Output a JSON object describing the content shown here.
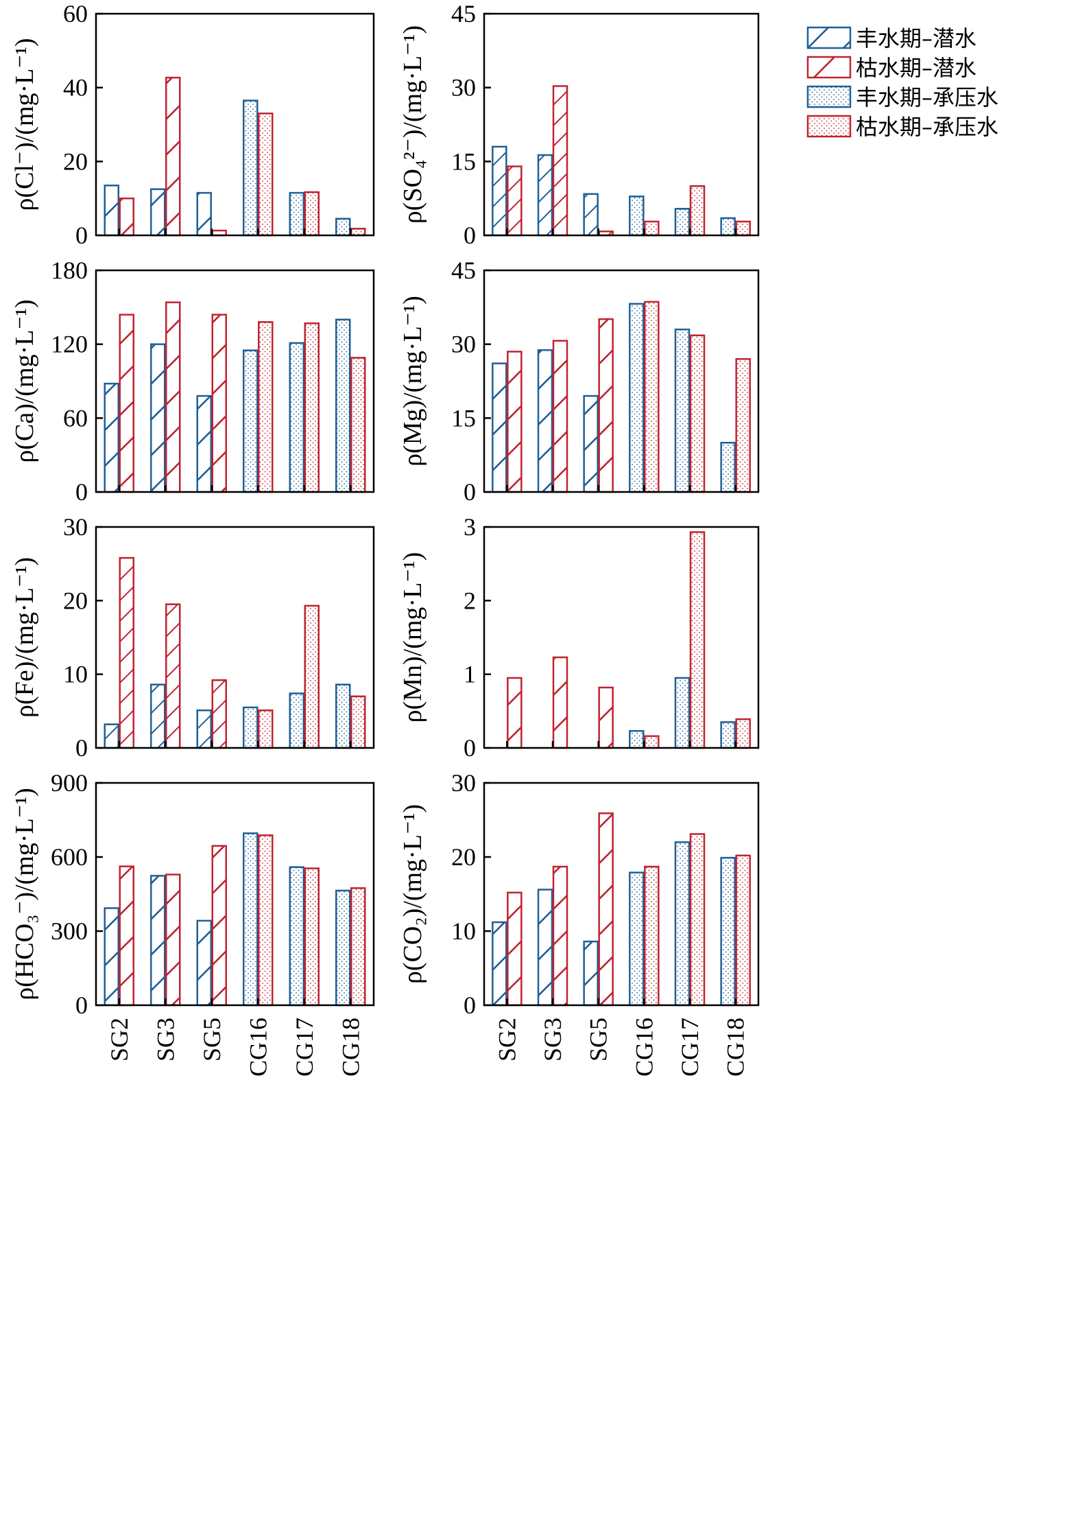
{
  "colors": {
    "blue": "#1f5f96",
    "red": "#c0232f"
  },
  "legend": [
    {
      "label": "丰水期–潜水",
      "color": "blue",
      "pattern": "hatch"
    },
    {
      "label": "枯水期–潜水",
      "color": "red",
      "pattern": "hatch"
    },
    {
      "label": "丰水期–承压水",
      "color": "blue",
      "pattern": "dots"
    },
    {
      "label": "枯水期–承压水",
      "color": "red",
      "pattern": "dots"
    }
  ],
  "chart_data": [
    {
      "type": "bar",
      "ylabel": "ρ(Cl⁻)/(mg·L⁻¹)",
      "ylim": [
        0,
        60
      ],
      "yticks": [
        0,
        20,
        40,
        60
      ],
      "categories": [
        "SG2",
        "SG3",
        "SG5",
        "CG16",
        "CG17",
        "CG18"
      ],
      "series": [
        {
          "name": "丰水期",
          "values": [
            13.5,
            12.5,
            11.5,
            36.5,
            11.5,
            4.5
          ]
        },
        {
          "name": "枯水期",
          "values": [
            10,
            42.7,
            1.3,
            33,
            11.7,
            1.8
          ]
        }
      ]
    },
    {
      "type": "bar",
      "ylabel": "ρ(SO₄²⁻)/(mg·L⁻¹)",
      "ylim": [
        0,
        45
      ],
      "yticks": [
        0,
        15,
        30,
        45
      ],
      "categories": [
        "SG2",
        "SG3",
        "SG5",
        "CG16",
        "CG17",
        "CG18"
      ],
      "series": [
        {
          "name": "丰水期",
          "values": [
            18,
            16.3,
            8.4,
            7.9,
            5.4,
            3.5
          ]
        },
        {
          "name": "枯水期",
          "values": [
            14,
            30.3,
            0.8,
            2.8,
            10,
            2.8
          ]
        }
      ]
    },
    {
      "type": "bar",
      "ylabel": "ρ(Ca)/(mg·L⁻¹)",
      "ylim": [
        0,
        180
      ],
      "yticks": [
        0,
        60,
        120,
        180
      ],
      "categories": [
        "SG2",
        "SG3",
        "SG5",
        "CG16",
        "CG17",
        "CG18"
      ],
      "series": [
        {
          "name": "丰水期",
          "values": [
            88,
            120,
            78,
            115,
            121,
            140
          ]
        },
        {
          "name": "枯水期",
          "values": [
            144,
            154,
            144,
            138,
            137,
            109
          ]
        }
      ]
    },
    {
      "type": "bar",
      "ylabel": "ρ(Mg)/(mg·L⁻¹)",
      "ylim": [
        0,
        45
      ],
      "yticks": [
        0,
        15,
        30,
        45
      ],
      "categories": [
        "SG2",
        "SG3",
        "SG5",
        "CG16",
        "CG17",
        "CG18"
      ],
      "series": [
        {
          "name": "丰水期",
          "values": [
            26.1,
            28.8,
            19.5,
            38.2,
            33,
            10
          ]
        },
        {
          "name": "枯水期",
          "values": [
            28.5,
            30.7,
            35.1,
            38.6,
            31.8,
            27
          ]
        }
      ]
    },
    {
      "type": "bar",
      "ylabel": "ρ(Fe)/(mg·L⁻¹)",
      "ylim": [
        0,
        30
      ],
      "yticks": [
        0,
        10,
        20,
        30
      ],
      "categories": [
        "SG2",
        "SG3",
        "SG5",
        "CG16",
        "CG17",
        "CG18"
      ],
      "series": [
        {
          "name": "丰水期",
          "values": [
            3.2,
            8.6,
            5.1,
            5.5,
            7.4,
            8.6
          ]
        },
        {
          "name": "枯水期",
          "values": [
            25.8,
            19.5,
            9.2,
            5.1,
            19.3,
            7.0
          ]
        }
      ]
    },
    {
      "type": "bar",
      "ylabel": "ρ(Mn)/(mg·L⁻¹)",
      "ylim": [
        0,
        3
      ],
      "yticks": [
        0,
        1,
        2,
        3
      ],
      "categories": [
        "SG2",
        "SG3",
        "SG5",
        "CG16",
        "CG17",
        "CG18"
      ],
      "series": [
        {
          "name": "丰水期",
          "values": [
            0,
            0,
            0,
            0.23,
            0.95,
            0.35
          ]
        },
        {
          "name": "枯水期",
          "values": [
            0.95,
            1.23,
            0.82,
            0.16,
            2.93,
            0.39
          ]
        }
      ]
    },
    {
      "type": "bar",
      "ylabel": "ρ(HCO₃⁻)/(mg·L⁻¹)",
      "ylim": [
        0,
        900
      ],
      "yticks": [
        0,
        300,
        600,
        900
      ],
      "categories": [
        "SG2",
        "SG3",
        "SG5",
        "CG16",
        "CG17",
        "CG18"
      ],
      "series": [
        {
          "name": "丰水期",
          "values": [
            393,
            524,
            342,
            696,
            559,
            464
          ]
        },
        {
          "name": "枯水期",
          "values": [
            562,
            529,
            645,
            688,
            554,
            474
          ]
        }
      ]
    },
    {
      "type": "bar",
      "ylabel": "ρ(CO₂)/(mg·L⁻¹)",
      "ylim": [
        0,
        30
      ],
      "yticks": [
        0,
        10,
        20,
        30
      ],
      "categories": [
        "SG2",
        "SG3",
        "SG5",
        "CG16",
        "CG17",
        "CG18"
      ],
      "series": [
        {
          "name": "丰水期",
          "values": [
            11.2,
            15.6,
            8.6,
            17.9,
            22,
            19.9
          ]
        },
        {
          "name": "枯水期",
          "values": [
            15.2,
            18.7,
            25.9,
            18.7,
            23.1,
            20.2
          ]
        }
      ]
    }
  ]
}
